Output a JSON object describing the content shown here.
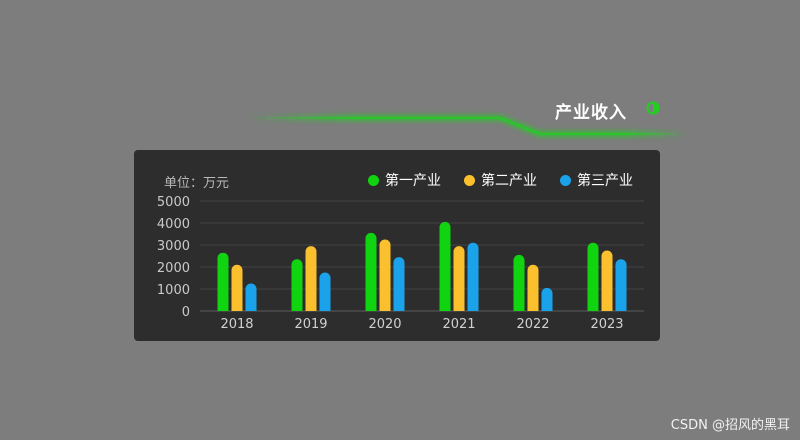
{
  "header": {
    "title": "产业收入",
    "accent_color": "#1fd11f",
    "icon": "half-circle-icon"
  },
  "panel": {
    "unit_label": "单位：万元"
  },
  "chart_data": {
    "type": "bar",
    "categories": [
      "2018",
      "2019",
      "2020",
      "2021",
      "2022",
      "2023"
    ],
    "series": [
      {
        "name": "第一产业",
        "color": "#11d411",
        "values": [
          2650,
          2350,
          3550,
          4050,
          2550,
          3100
        ]
      },
      {
        "name": "第二产业",
        "color": "#fbc02d",
        "values": [
          2100,
          2950,
          3250,
          2950,
          2100,
          2750
        ]
      },
      {
        "name": "第三产业",
        "color": "#1aa3ea",
        "values": [
          1250,
          1750,
          2450,
          3100,
          1050,
          2350
        ]
      }
    ],
    "ylim": [
      0,
      5000
    ],
    "yticks": [
      "0",
      "1000",
      "2000",
      "3000",
      "4000",
      "5000"
    ],
    "grid": true,
    "legend_position": "top-right"
  },
  "watermark": "CSDN @招风的黑耳"
}
